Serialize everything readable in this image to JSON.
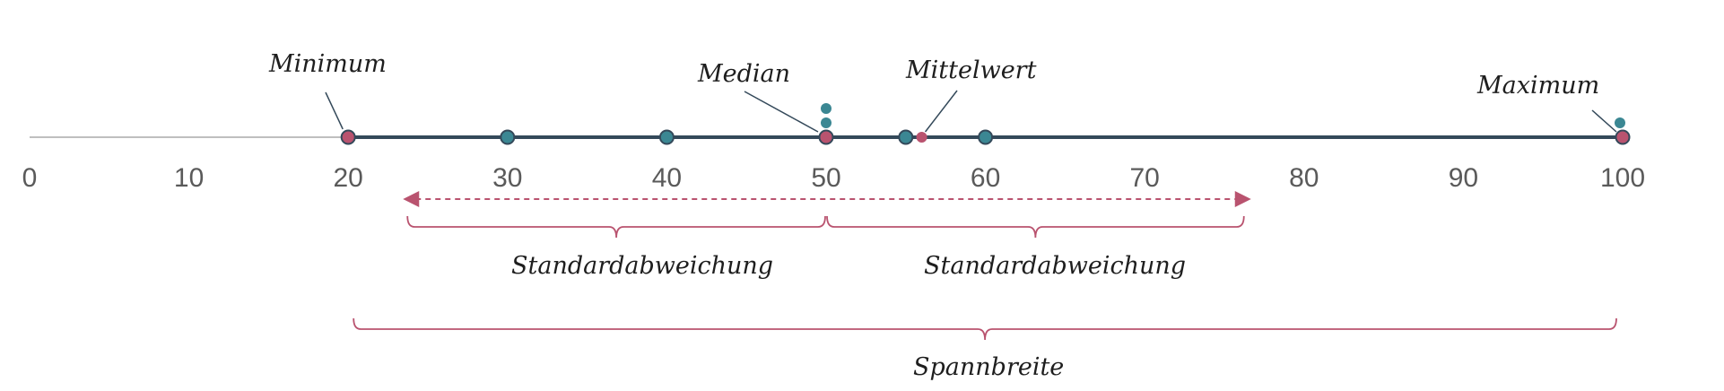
{
  "axis": {
    "min": 0,
    "max": 100,
    "ticks": [
      0,
      10,
      20,
      30,
      40,
      50,
      60,
      70,
      80,
      90,
      100
    ]
  },
  "data_points": [
    20,
    30,
    40,
    50,
    50,
    50,
    55,
    60,
    100,
    100
  ],
  "stats": {
    "minimum": 20,
    "median": 50,
    "mean": 56,
    "maximum": 100,
    "sd_range": [
      24,
      76
    ]
  },
  "labels": {
    "minimum": "Minimum",
    "median": "Median",
    "mean": "Mittelwert",
    "maximum": "Maximum",
    "sd_left": "Standardabweichung",
    "sd_right": "Standardabweichung",
    "range": "Spannbreite"
  },
  "colors": {
    "point": "#3b8793",
    "highlight": "#b9536f",
    "axis_line": "#34495a",
    "axis_light": "#bfbfbf",
    "text": "#5a5a5a"
  }
}
